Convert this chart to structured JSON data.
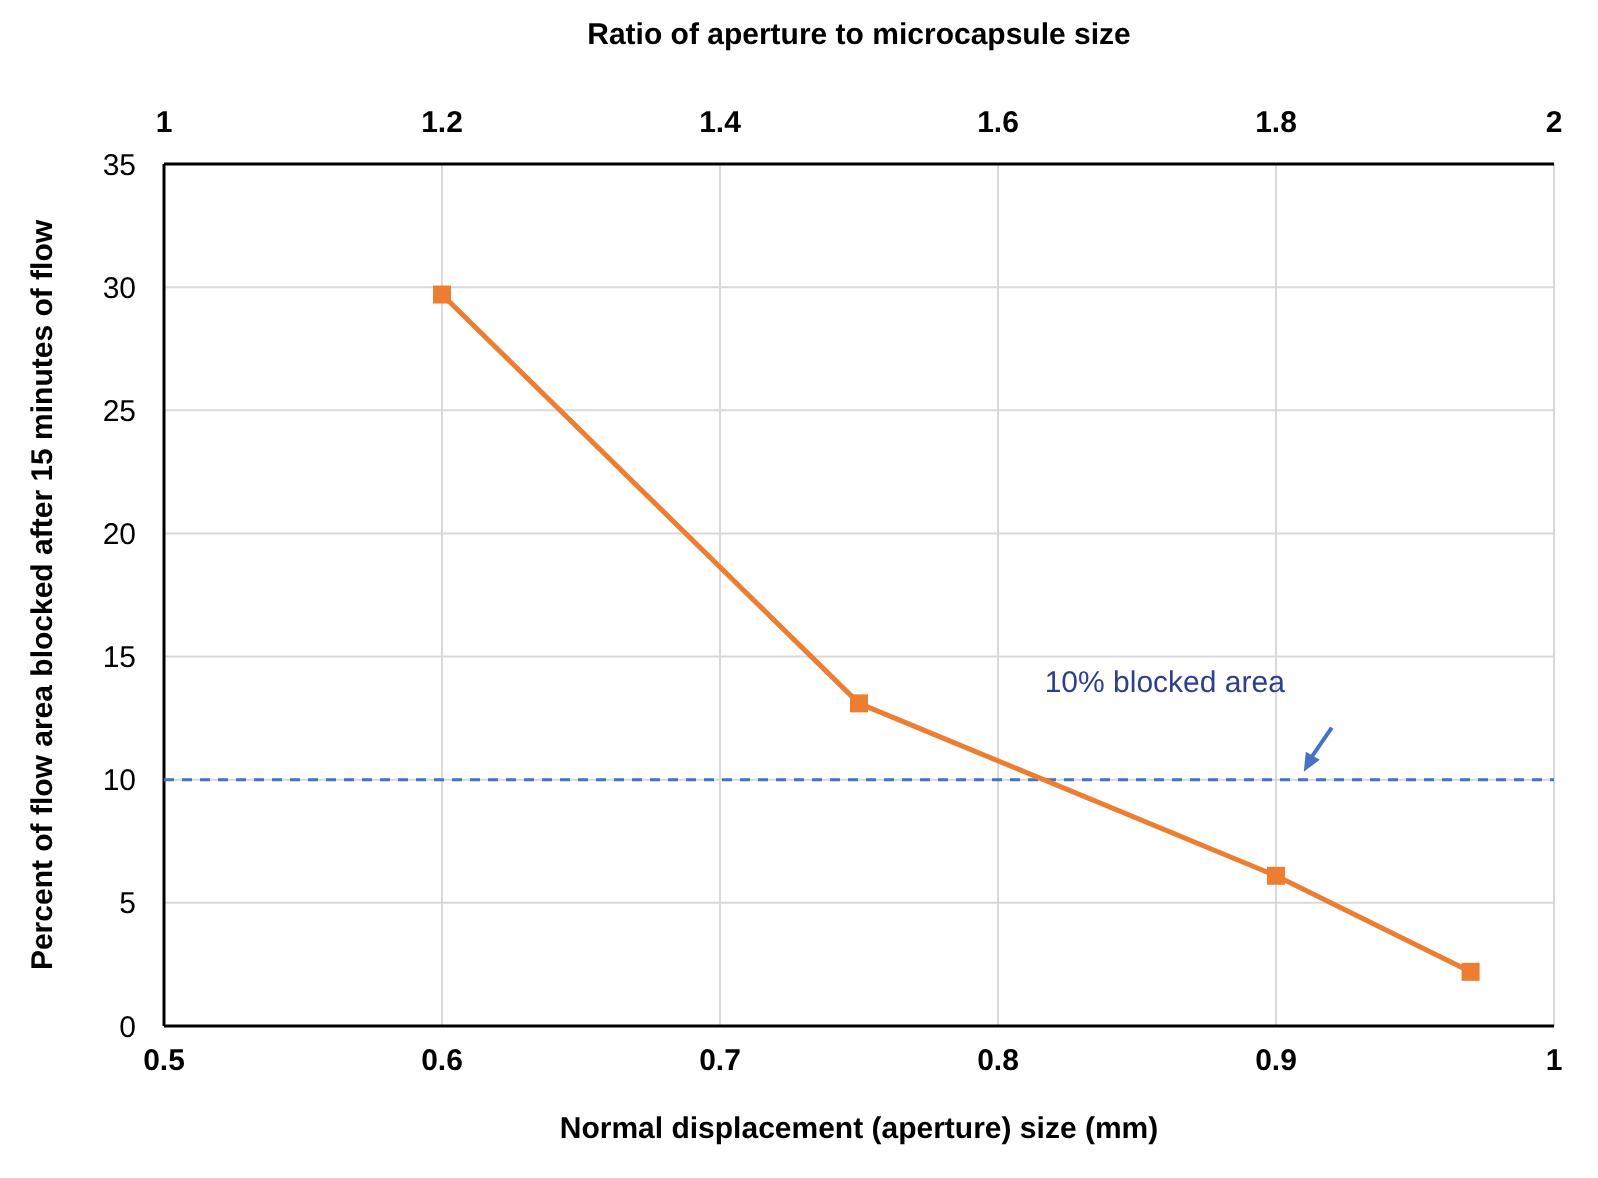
{
  "chart_data": {
    "type": "line",
    "xlabel": "Normal displacement (aperture) size (mm)",
    "ylabel": "Percent of flow area blocked after 15 minutes of flow",
    "x2label": "Ratio of aperture to microcapsule size",
    "x": [
      0.6,
      0.75,
      0.9,
      0.97
    ],
    "series": [
      {
        "color": "#ed7d31",
        "values": [
          29.7,
          13.1,
          6.1,
          2.2
        ]
      }
    ],
    "xlim": [
      0.5,
      1
    ],
    "xticks": [
      0.5,
      0.6,
      0.7,
      0.8,
      0.9,
      1
    ],
    "x2lim": [
      1,
      2
    ],
    "x2ticks": [
      1,
      1.2,
      1.4,
      1.6,
      1.8,
      2
    ],
    "ylim": [
      0,
      35
    ],
    "yticks": [
      0,
      5,
      10,
      15,
      20,
      25,
      30,
      35
    ],
    "ref_lines": [
      {
        "axis": "y",
        "value": 10,
        "label": "10% blocked area",
        "color": "#4472c4",
        "line_style": "dashed"
      }
    ],
    "grid": true,
    "marker": "square",
    "line_style": "solid"
  }
}
